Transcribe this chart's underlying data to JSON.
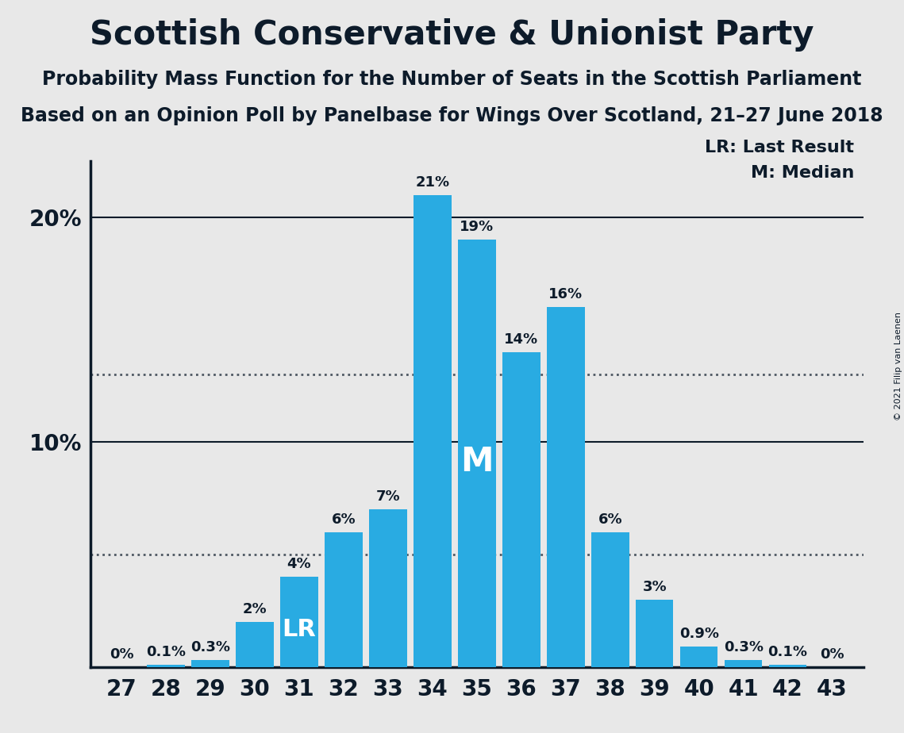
{
  "title": "Scottish Conservative & Unionist Party",
  "subtitle1": "Probability Mass Function for the Number of Seats in the Scottish Parliament",
  "subtitle2": "Based on an Opinion Poll by Panelbase for Wings Over Scotland, 21–27 June 2018",
  "copyright": "© 2021 Filip van Laenen",
  "legend_lr": "LR: Last Result",
  "legend_m": "M: Median",
  "seats": [
    27,
    28,
    29,
    30,
    31,
    32,
    33,
    34,
    35,
    36,
    37,
    38,
    39,
    40,
    41,
    42,
    43
  ],
  "probabilities": [
    0.0,
    0.1,
    0.3,
    2.0,
    4.0,
    6.0,
    7.0,
    21.0,
    19.0,
    14.0,
    16.0,
    6.0,
    3.0,
    0.9,
    0.3,
    0.1,
    0.0
  ],
  "bar_color": "#29ABE2",
  "background_color": "#E8E8E8",
  "axis_color": "#0D1B2A",
  "label_color": "#0D1B2A",
  "lr_seat": 31,
  "median_seat": 35,
  "ylim_max": 22.5,
  "yticks": [
    10,
    20
  ],
  "dotted_lines": [
    13.0,
    5.0
  ],
  "title_fontsize": 30,
  "subtitle_fontsize": 17,
  "label_fontsize": 13,
  "tick_fontsize": 20,
  "lr_label_fontsize": 22,
  "m_label_fontsize": 30
}
